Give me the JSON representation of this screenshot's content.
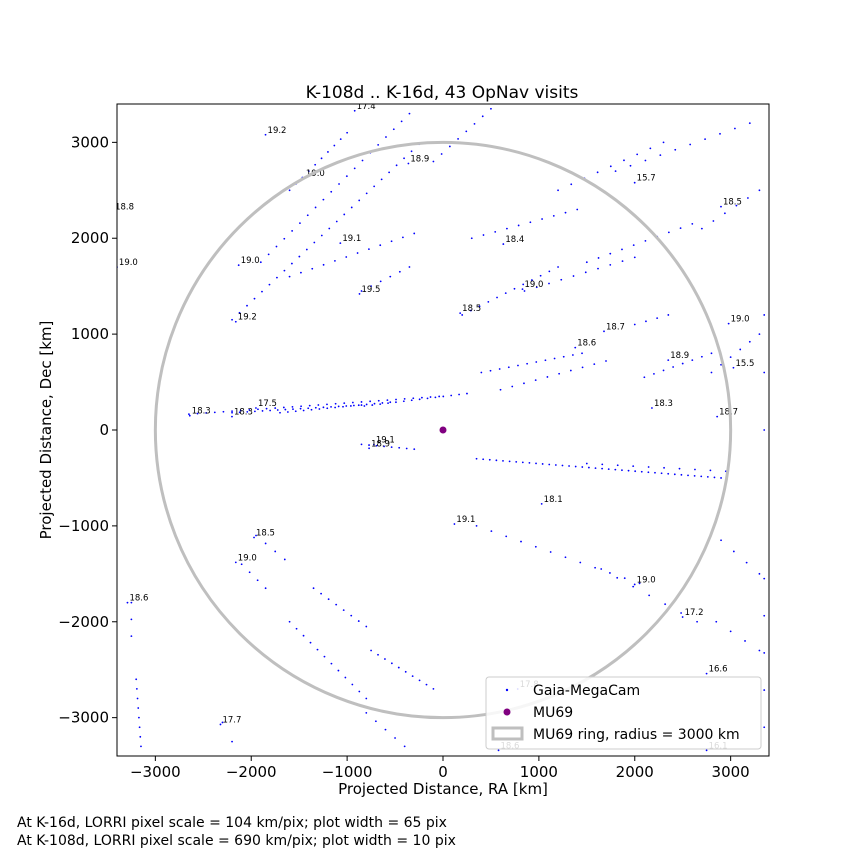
{
  "chart_data": {
    "type": "scatter",
    "title": "K-108d .. K-16d, 43 OpNav visits",
    "xlabel": "Projected Distance, RA [km]",
    "ylabel": "Projected Distance, Dec [km]",
    "xlim": [
      -3400,
      3400
    ],
    "ylim": [
      -3400,
      3400
    ],
    "xticks": [
      -3000,
      -2000,
      -1000,
      0,
      1000,
      2000,
      3000
    ],
    "yticks": [
      -3000,
      -2000,
      -1000,
      0,
      1000,
      2000,
      3000
    ],
    "xtick_labels": [
      "−3000",
      "−2000",
      "−1000",
      "0",
      "1000",
      "2000",
      "3000"
    ],
    "ytick_labels": [
      "−3000",
      "−2000",
      "−1000",
      "0",
      "1000",
      "2000",
      "3000"
    ],
    "grid": false,
    "legend_position": "lower right",
    "colors": {
      "stars": "#0000ff",
      "mu69": "#800080",
      "ring": "#bfbfbf"
    },
    "series": [
      {
        "name": "Gaia-MegaCam",
        "marker": "point",
        "tracks": [
          {
            "start": [
              -2650,
              165
            ],
            "end": [
              -40,
              350
            ],
            "n": 30
          },
          {
            "start": [
              -2200,
              180
            ],
            "end": [
              -850,
              260
            ],
            "n": 18
          },
          {
            "start": [
              -1700,
              180
            ],
            "end": [
              -550,
              290
            ],
            "n": 15
          },
          {
            "start": [
              -820,
              250
            ],
            "end": [
              250,
              380
            ],
            "n": 14
          },
          {
            "start": [
              400,
              600
            ],
            "end": [
              1450,
              800
            ],
            "n": 12
          },
          {
            "start": [
              600,
              420
            ],
            "end": [
              1700,
              720
            ],
            "n": 10
          },
          {
            "start": [
              -2200,
              1150
            ],
            "end": [
              -250,
              2980
            ],
            "n": 26
          },
          {
            "start": [
              -1900,
              1750
            ],
            "end": [
              -350,
              3300
            ],
            "n": 20
          },
          {
            "start": [
              -1600,
              1600
            ],
            "end": [
              -300,
              2050
            ],
            "n": 12
          },
          {
            "start": [
              -1600,
              2500
            ],
            "end": [
              -1000,
              3100
            ],
            "n": 10
          },
          {
            "start": [
              -850,
              1450
            ],
            "end": [
              -350,
              1700
            ],
            "n": 6
          },
          {
            "start": [
              200,
              1200
            ],
            "end": [
              1200,
              1700
            ],
            "n": 12
          },
          {
            "start": [
              300,
              2000
            ],
            "end": [
              1400,
              2300
            ],
            "n": 10
          },
          {
            "start": [
              1500,
              1750
            ],
            "end": [
              2600,
              2150
            ],
            "n": 10
          },
          {
            "start": [
              850,
              1450
            ],
            "end": [
              2000,
              1800
            ],
            "n": 10
          },
          {
            "start": [
              1200,
              2500
            ],
            "end": [
              2300,
              3000
            ],
            "n": 9
          },
          {
            "start": [
              1800,
              2700
            ],
            "end": [
              3200,
              3200
            ],
            "n": 10
          },
          {
            "start": [
              2000,
              1100
            ],
            "end": [
              2350,
              1200
            ],
            "n": 4
          },
          {
            "start": [
              2100,
              550
            ],
            "end": [
              2800,
              800
            ],
            "n": 8
          },
          {
            "start": [
              2800,
              600
            ],
            "end": [
              3300,
              1000
            ],
            "n": 6
          },
          {
            "start": [
              -100,
              2800
            ],
            "end": [
              500,
              3350
            ],
            "n": 8
          },
          {
            "start": [
              2700,
              2100
            ],
            "end": [
              3300,
              2500
            ],
            "n": 6
          },
          {
            "start": [
              -300,
              -200
            ],
            "end": [
              -850,
              -150
            ],
            "n": 8
          },
          {
            "start": [
              350,
              -300
            ],
            "end": [
              2900,
              -500
            ],
            "n": 38
          },
          {
            "start": [
              1500,
              -350
            ],
            "end": [
              2950,
              -430
            ],
            "n": 10
          },
          {
            "start": [
              350,
              -1000
            ],
            "end": [
              2050,
              -1600
            ],
            "n": 12
          },
          {
            "start": [
              1650,
              -1450
            ],
            "end": [
              2650,
              -2000
            ],
            "n": 7
          },
          {
            "start": [
              -1950,
              -1100
            ],
            "end": [
              -1650,
              -1350
            ],
            "n": 4
          },
          {
            "start": [
              -2100,
              -1400
            ],
            "end": [
              -1850,
              -1650
            ],
            "n": 4
          },
          {
            "start": [
              -1350,
              -1650
            ],
            "end": [
              -800,
              -2050
            ],
            "n": 8
          },
          {
            "start": [
              -1600,
              -2000
            ],
            "end": [
              -800,
              -2800
            ],
            "n": 12
          },
          {
            "start": [
              -750,
              -2300
            ],
            "end": [
              -100,
              -2700
            ],
            "n": 10
          },
          {
            "start": [
              -800,
              -2950
            ],
            "end": [
              -400,
              -3300
            ],
            "n": 5
          },
          {
            "start": [
              -3250,
              -1800
            ],
            "end": [
              -3250,
              -2150
            ],
            "n": 3
          },
          {
            "start": [
              -3200,
              -2600
            ],
            "end": [
              -3150,
              -3300
            ],
            "n": 8
          },
          {
            "start": [
              2900,
              -1150
            ],
            "end": [
              3300,
              -1500
            ],
            "n": 4
          },
          {
            "start": [
              2850,
              -2000
            ],
            "end": [
              3300,
              -2300
            ],
            "n": 4
          },
          {
            "start": [
              3350,
              -1550
            ],
            "end": [
              3350,
              -3100
            ],
            "n": 5
          },
          {
            "start": [
              -2300,
              -3050
            ],
            "end": [
              -2200,
              -3250
            ],
            "n": 2
          },
          {
            "start": [
              3350,
              0
            ],
            "end": [
              3350,
              1200
            ],
            "n": 3
          }
        ]
      },
      {
        "name": "MU69",
        "x": [
          0
        ],
        "y": [
          0
        ],
        "marker": "circle"
      },
      {
        "name": "MU69 ring, radius = 3000 km",
        "type": "circle",
        "radius": 3000
      }
    ],
    "annotations": [
      {
        "text": "17.4",
        "x": -900,
        "y": 3350
      },
      {
        "text": "19.2",
        "x": -1830,
        "y": 3100
      },
      {
        "text": "18.9",
        "x": -340,
        "y": 2800
      },
      {
        "text": "19.0",
        "x": -1430,
        "y": 2650
      },
      {
        "text": "15.7",
        "x": 2020,
        "y": 2600
      },
      {
        "text": "18.5",
        "x": 2920,
        "y": 2350
      },
      {
        "text": "18.8",
        "x": -3420,
        "y": 2300
      },
      {
        "text": "19.1",
        "x": -1050,
        "y": 1970
      },
      {
        "text": "18.4",
        "x": 650,
        "y": 1960
      },
      {
        "text": "19.0",
        "x": -2110,
        "y": 1740
      },
      {
        "text": "19.0",
        "x": -3380,
        "y": 1720
      },
      {
        "text": "19.0",
        "x": 850,
        "y": 1490
      },
      {
        "text": "19.5",
        "x": -850,
        "y": 1440
      },
      {
        "text": "18.5",
        "x": 200,
        "y": 1240
      },
      {
        "text": "19.2",
        "x": -2140,
        "y": 1150
      },
      {
        "text": "19.0",
        "x": 3000,
        "y": 1130
      },
      {
        "text": "18.7",
        "x": 1700,
        "y": 1050
      },
      {
        "text": "18.6",
        "x": 1400,
        "y": 880
      },
      {
        "text": "18.9",
        "x": 2370,
        "y": 750
      },
      {
        "text": "15.5",
        "x": 3050,
        "y": 670
      },
      {
        "text": "17.5",
        "x": -1930,
        "y": 250
      },
      {
        "text": "18.3",
        "x": 2200,
        "y": 250
      },
      {
        "text": "18.3",
        "x": -2620,
        "y": 170
      },
      {
        "text": "18.3",
        "x": -2180,
        "y": 160
      },
      {
        "text": "18.7",
        "x": 2880,
        "y": 160
      },
      {
        "text": "19.1",
        "x": -700,
        "y": -130
      },
      {
        "text": "18.9",
        "x": -750,
        "y": -170
      },
      {
        "text": "18.1",
        "x": 1050,
        "y": -750
      },
      {
        "text": "19.1",
        "x": 140,
        "y": -960
      },
      {
        "text": "18.5",
        "x": -1950,
        "y": -1100
      },
      {
        "text": "19.0",
        "x": -2140,
        "y": -1360
      },
      {
        "text": "19.0",
        "x": 2020,
        "y": -1590
      },
      {
        "text": "18.6",
        "x": -3270,
        "y": -1780
      },
      {
        "text": "17.2",
        "x": 2520,
        "y": -1930
      },
      {
        "text": "16.6",
        "x": 2770,
        "y": -2520
      },
      {
        "text": "17.8",
        "x": 800,
        "y": -2680
      },
      {
        "text": "17.7",
        "x": -2300,
        "y": -3050
      },
      {
        "text": "18.6",
        "x": 600,
        "y": -3320
      },
      {
        "text": "16.1",
        "x": 2770,
        "y": -3320
      }
    ],
    "footnotes": [
      "At K-16d, LORRI pixel scale = 104 km/pix; plot width = 65 pix",
      "At K-108d, LORRI pixel scale = 690 km/pix; plot width = 10 pix"
    ]
  }
}
